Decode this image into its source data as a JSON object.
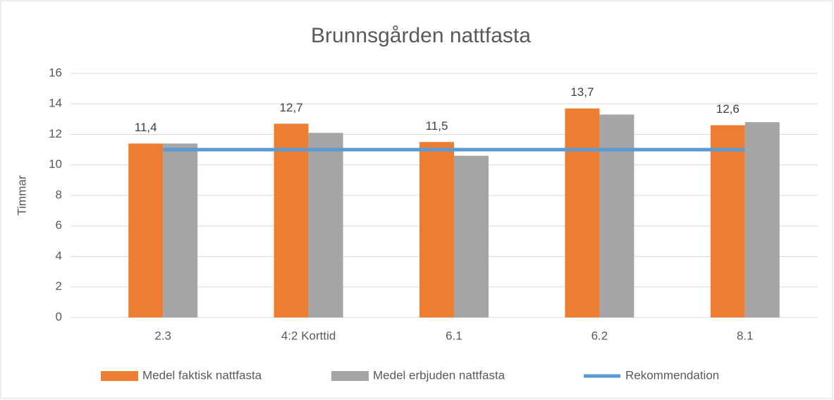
{
  "chart_data": {
    "type": "bar",
    "title": "Brunnsgården nattfasta",
    "y_label": "Timmar",
    "categories": [
      "2.3",
      "4:2 Korttid",
      "6.1",
      "6.2",
      "8.1"
    ],
    "series": [
      {
        "name": "Medel faktisk nattfasta",
        "color": "#ed7d31",
        "values": [
          11.4,
          12.7,
          11.5,
          13.7,
          12.6
        ],
        "value_labels": [
          "11,4",
          "12,7",
          "11,5",
          "13,7",
          "12,6"
        ]
      },
      {
        "name": "Medel erbjuden nattfasta",
        "color": "#a5a5a5",
        "values": [
          11.4,
          12.1,
          10.6,
          13.3,
          12.8
        ]
      },
      {
        "name": "Rekommendation",
        "type": "line",
        "color": "#5b9bd5",
        "values": [
          11,
          11,
          11,
          11,
          11
        ]
      }
    ],
    "ylim": [
      0,
      16
    ],
    "yticks": [
      0,
      2,
      4,
      6,
      8,
      10,
      12,
      14,
      16
    ],
    "grid": true,
    "legend": "bottom"
  }
}
